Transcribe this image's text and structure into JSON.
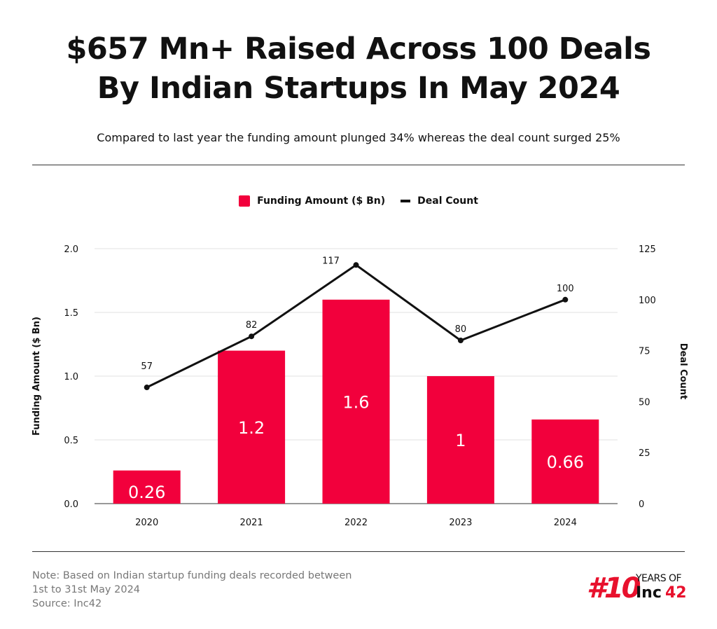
{
  "title_line1": "$657 Mn+ Raised Across 100 Deals",
  "title_line2": "By Indian Startups In May 2024",
  "subtitle": "Compared to last year the funding amount plunged 34% whereas the deal count surged 25%",
  "note_lines": [
    "Note: Based on Indian startup funding deals recorded between",
    "1st to 31st May 2024",
    "Source: Inc42"
  ],
  "logo": {
    "hash_text": "#10",
    "years_text": "YEARS OF",
    "brand": "Inc42"
  },
  "colors": {
    "bar": "#f2003c",
    "line": "#111111",
    "grid": "#e2e2e2"
  },
  "chart_data": {
    "type": "bar+line",
    "categories": [
      "2020",
      "2021",
      "2022",
      "2023",
      "2024"
    ],
    "series": [
      {
        "name": "Funding Amount ($ Bn)",
        "type": "bar",
        "axis": "left",
        "values": [
          0.26,
          1.2,
          1.6,
          1,
          0.66
        ],
        "labels": [
          "0.26",
          "1.2",
          "1.6",
          "1",
          "0.66"
        ]
      },
      {
        "name": "Deal Count",
        "type": "line",
        "axis": "right",
        "values": [
          57,
          82,
          117,
          80,
          100
        ]
      }
    ],
    "ylabel": "Funding Amount ($ Bn)",
    "y2label": "Deal Count",
    "ylim": [
      0,
      2.0
    ],
    "y2lim": [
      0,
      125
    ],
    "yticks": [
      "0.0",
      "0.5",
      "1.0",
      "1.5",
      "2.0"
    ],
    "y2ticks": [
      "0",
      "25",
      "50",
      "75",
      "100",
      "125"
    ],
    "grid": true,
    "legend": "top-center"
  }
}
